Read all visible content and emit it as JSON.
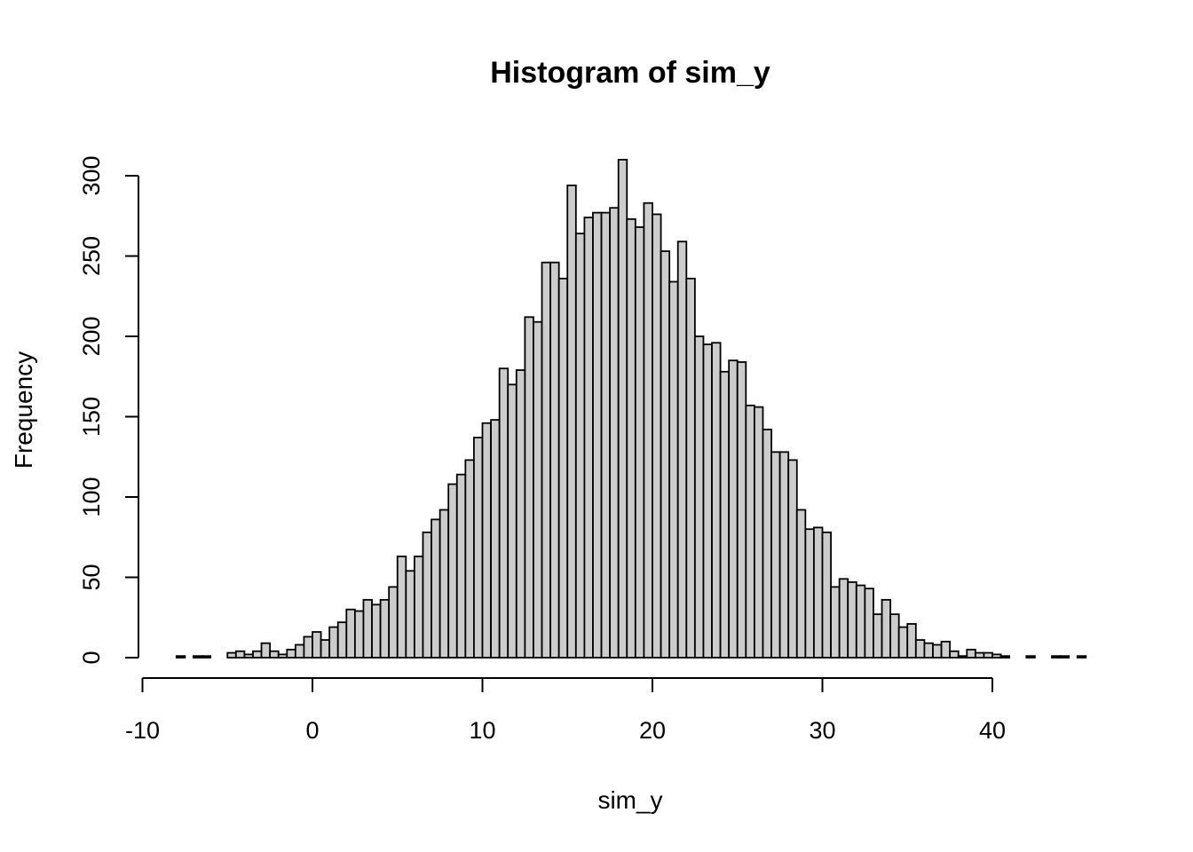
{
  "chart_data": {
    "type": "bar",
    "title": "Histogram of sim_y",
    "xlabel": "sim_y",
    "ylabel": "Frequency",
    "bin_width": 0.5,
    "bin_start": -8,
    "bin_end": 45.5,
    "xlim": [
      -10,
      40
    ],
    "ylim": [
      0,
      300
    ],
    "xticks": [
      -10,
      0,
      10,
      20,
      30,
      40
    ],
    "yticks": [
      0,
      50,
      100,
      150,
      200,
      250,
      300
    ],
    "grid": false,
    "values": [
      1,
      0,
      1,
      1,
      0,
      0,
      3,
      4,
      2,
      4,
      9,
      4,
      2,
      5,
      8,
      13,
      16,
      11,
      19,
      22,
      30,
      29,
      36,
      33,
      36,
      44,
      63,
      54,
      63,
      78,
      86,
      92,
      108,
      114,
      123,
      137,
      146,
      148,
      180,
      170,
      179,
      212,
      209,
      246,
      246,
      236,
      294,
      264,
      274,
      277,
      277,
      280,
      310,
      273,
      268,
      283,
      276,
      253,
      234,
      259,
      236,
      200,
      195,
      196,
      178,
      185,
      184,
      157,
      156,
      142,
      128,
      128,
      123,
      92,
      80,
      81,
      78,
      44,
      49,
      47,
      45,
      43,
      27,
      36,
      27,
      19,
      21,
      11,
      9,
      8,
      10,
      4,
      1,
      5,
      3,
      3,
      2,
      1,
      0,
      0,
      1,
      0,
      0,
      1,
      1,
      0,
      1
    ]
  }
}
